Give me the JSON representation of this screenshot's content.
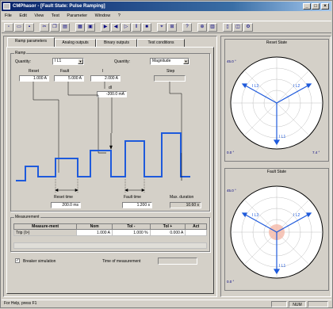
{
  "window": {
    "title": "CMPhasor - [Fault State: Pulse Ramping]"
  },
  "menu": [
    "File",
    "Edit",
    "View",
    "Test",
    "Parameter",
    "Window",
    "?"
  ],
  "tabs": [
    "Ramp parameters",
    "Analog outputs",
    "Binary outputs",
    "Test conditions"
  ],
  "ramp": {
    "group_label": "Ramp",
    "quantity_label": "Quantity:",
    "quantity_value": "I L1",
    "quantity2_label": "Quantity:",
    "quantity2_value": "Magnitude",
    "reset_label": "Reset",
    "fault_label": "Fault",
    "delta_label": "I",
    "step_label": "Step",
    "reset_value": "1.000 A",
    "fault_value": "5.000 A",
    "delta_value": "2.000 A",
    "step_value": "",
    "increment_label": "dI",
    "increment_value": "-200.0 mA",
    "reset_time_label": "Reset time",
    "fault_time_label": "Fault time",
    "max_duration_label": "Max. duration",
    "reset_time_value": "200.0 ms",
    "fault_time_value": "1.200 s",
    "max_duration_value": "10.60 s"
  },
  "measurement": {
    "group_label": "Measurement",
    "columns": [
      "Measure-ment",
      "Nom",
      "Tol -",
      "Tol +",
      "Act"
    ],
    "rows": [
      [
        "Trip (I>)",
        "1.000 A",
        "1.000 %",
        "0.000 A",
        ""
      ]
    ]
  },
  "options": {
    "breaker_label": "Breaker simulation",
    "breaker_checked": "✓",
    "time_label": "Time of measurement"
  },
  "phasors": {
    "reset": {
      "title": "Reset State",
      "labels": [
        "I L3",
        "I L2",
        "I L1",
        "45.0 °",
        "0.0 °",
        "7.4 °"
      ]
    },
    "fault": {
      "title": "Fault State",
      "labels": [
        "I L3",
        "I L2",
        "I L1",
        "45.0 °",
        "0.0 °"
      ]
    }
  },
  "status": {
    "text": "For Help, press F1",
    "num": "NUM"
  }
}
